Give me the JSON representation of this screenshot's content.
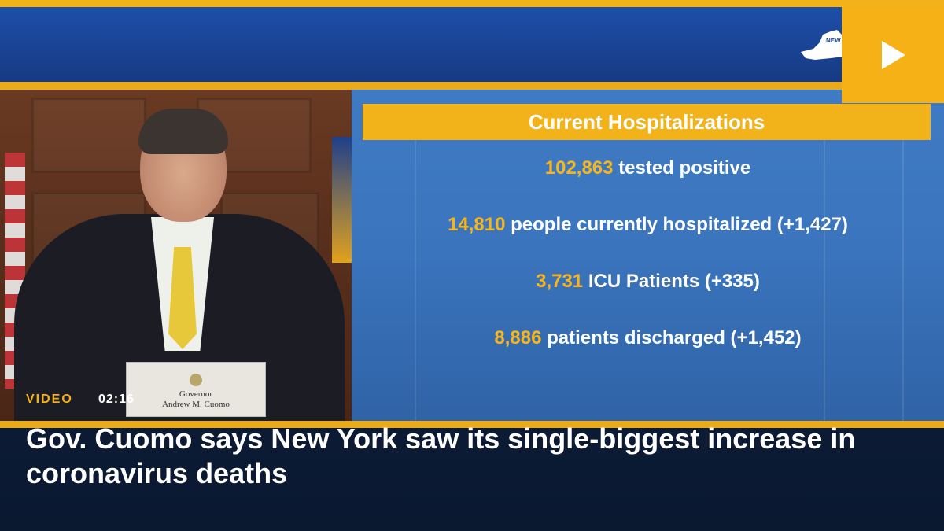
{
  "video": {
    "tag": "VIDEO",
    "duration": "02:16",
    "headline": "Gov. Cuomo says New York saw its single-biggest increase in coronavirus deaths"
  },
  "broadcast": {
    "logo_text": "NEW YORK STATE",
    "nameplate": {
      "line1": "Governor",
      "line2": "Andrew M. Cuomo"
    }
  },
  "graphic": {
    "title": "Current Hospitalizations",
    "stats": [
      {
        "value": "102,863",
        "text": " tested positive"
      },
      {
        "value": "14,810",
        "text": " people currently hospitalized (+1,427)"
      },
      {
        "value": "3,731",
        "text": " ICU Patients (+335)"
      },
      {
        "value": "8,886",
        "text": " patients discharged (+1,452)"
      }
    ]
  },
  "colors": {
    "accent": "#f2b21a",
    "banner_blue": "#1d4fa8",
    "caption_bg": "#0b1a33"
  },
  "icons": {
    "play": "play-icon",
    "logo": "new-york-state-logo-icon"
  }
}
